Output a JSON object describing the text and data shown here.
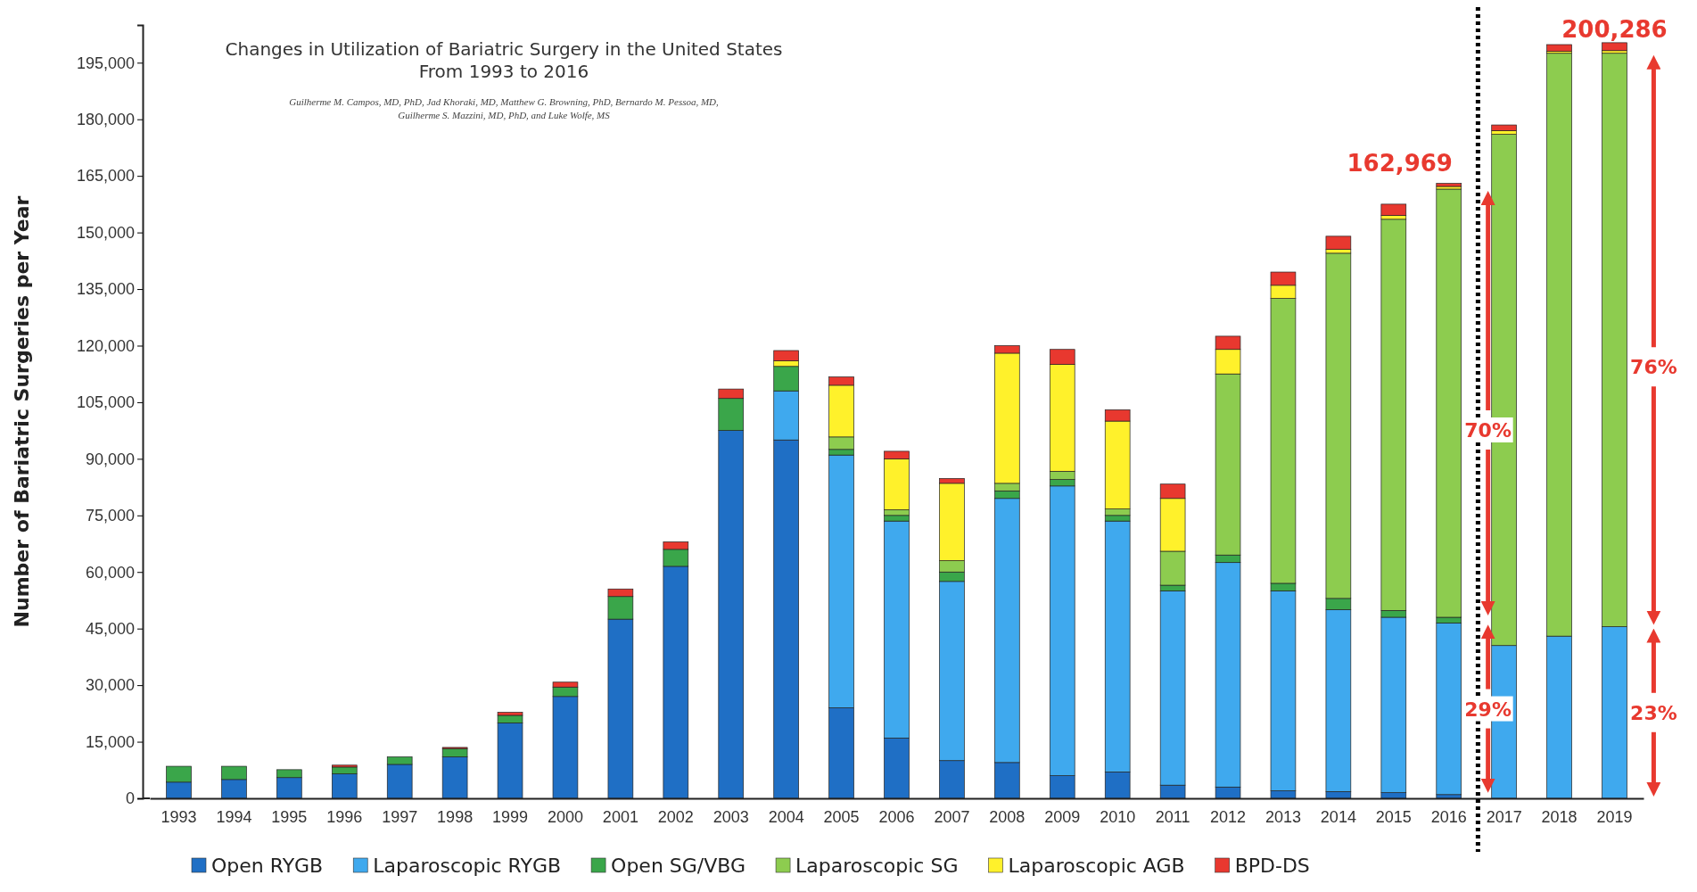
{
  "chart_data": {
    "type": "bar",
    "stacked": true,
    "title": "Changes in Utilization of Bariatric Surgery in the United States\nFrom 1993 to 2016",
    "subtitle": "Guilherme M. Campos, MD, PhD, Jad Khoraki, MD, Matthew G. Browning, PhD, Bernardo M. Pessoa, MD,\nGuilherme S. Mazzini, MD, PhD, and Luke Wolfe, MS",
    "ylabel": "Number of Bariatric Surgeries per Year",
    "categories": [
      "1993",
      "1994",
      "1995",
      "1996",
      "1997",
      "1998",
      "1999",
      "2000",
      "2001",
      "2002",
      "2003",
      "2004",
      "2005",
      "2006",
      "2007",
      "2008",
      "2009",
      "2010",
      "2011",
      "2012",
      "2013",
      "2014",
      "2015",
      "2016",
      "2017",
      "2018",
      "2019"
    ],
    "series": [
      {
        "name": "Open RYGB",
        "color": "#1f6fc5",
        "values": [
          4300,
          5000,
          5500,
          6500,
          9000,
          11000,
          20000,
          27000,
          47500,
          61500,
          97500,
          95000,
          24000,
          16000,
          10000,
          9500,
          6000,
          7000,
          3500,
          3000,
          2000,
          1800,
          1500,
          1000,
          0,
          0,
          0
        ]
      },
      {
        "name": "Laparoscopic RYGB",
        "color": "#3fa9ee",
        "values": [
          0,
          0,
          0,
          0,
          0,
          0,
          0,
          0,
          0,
          0,
          0,
          13000,
          67000,
          57500,
          47500,
          70000,
          76800,
          66500,
          51500,
          59500,
          53000,
          48200,
          46500,
          45500,
          40500,
          43000,
          45500
        ]
      },
      {
        "name": "Open SG/VBG",
        "color": "#3aa64a",
        "values": [
          4200,
          3500,
          2100,
          1800,
          2000,
          2200,
          2000,
          2500,
          6000,
          4500,
          8500,
          6500,
          1500,
          1500,
          2500,
          2000,
          1700,
          1500,
          1500,
          2000,
          2000,
          3000,
          1800,
          1500,
          0,
          0,
          0
        ]
      },
      {
        "name": "Laparoscopic SG",
        "color": "#8dcc4f",
        "values": [
          0,
          0,
          0,
          0,
          0,
          0,
          0,
          0,
          0,
          0,
          0,
          0,
          3300,
          1500,
          3000,
          2000,
          2200,
          1700,
          9000,
          48000,
          75500,
          91500,
          103700,
          113500,
          135500,
          154500,
          152000
        ]
      },
      {
        "name": "Laparoscopic AGB",
        "color": "#fff12b",
        "values": [
          0,
          0,
          0,
          0,
          0,
          0,
          0,
          0,
          0,
          0,
          0,
          1500,
          13700,
          13500,
          20500,
          34500,
          28300,
          23300,
          14000,
          6500,
          3500,
          1000,
          1000,
          700,
          1000,
          500,
          700
        ]
      },
      {
        "name": "BPD-DS",
        "color": "#e8382f",
        "values": [
          0,
          0,
          0,
          500,
          0,
          300,
          800,
          1300,
          2000,
          2000,
          2500,
          2700,
          2200,
          2000,
          1300,
          2000,
          4000,
          3000,
          3800,
          3500,
          3500,
          3500,
          3000,
          800,
          1500,
          1800,
          2100
        ]
      }
    ],
    "ylim": [
      0,
      205000
    ],
    "yticks": [
      0,
      {
        "value": 15000,
        "label": "15,000"
      },
      {
        "value": 30000,
        "label": "30,000"
      },
      {
        "value": 45000,
        "label": "45,000"
      },
      {
        "value": 60000,
        "label": "60,000"
      },
      {
        "value": 75000,
        "label": "75,000"
      },
      {
        "value": 90000,
        "label": "90,000"
      },
      {
        "value": 105000,
        "label": "105,000"
      },
      {
        "value": 120000,
        "label": "120,000"
      },
      {
        "value": 135000,
        "label": "135,000"
      },
      {
        "value": 150000,
        "label": "150,000"
      },
      {
        "value": 165000,
        "label": "165,000"
      },
      {
        "value": 180000,
        "label": "180,000"
      },
      {
        "value": 195000,
        "label": "195,000"
      }
    ],
    "annotations": [
      {
        "text": "162,969",
        "x": "2016",
        "y": 162969
      },
      {
        "text": "200,286",
        "x": "2019",
        "y": 200286
      },
      "70%",
      "29%",
      "76%",
      "23%"
    ],
    "legend": "bottom"
  }
}
